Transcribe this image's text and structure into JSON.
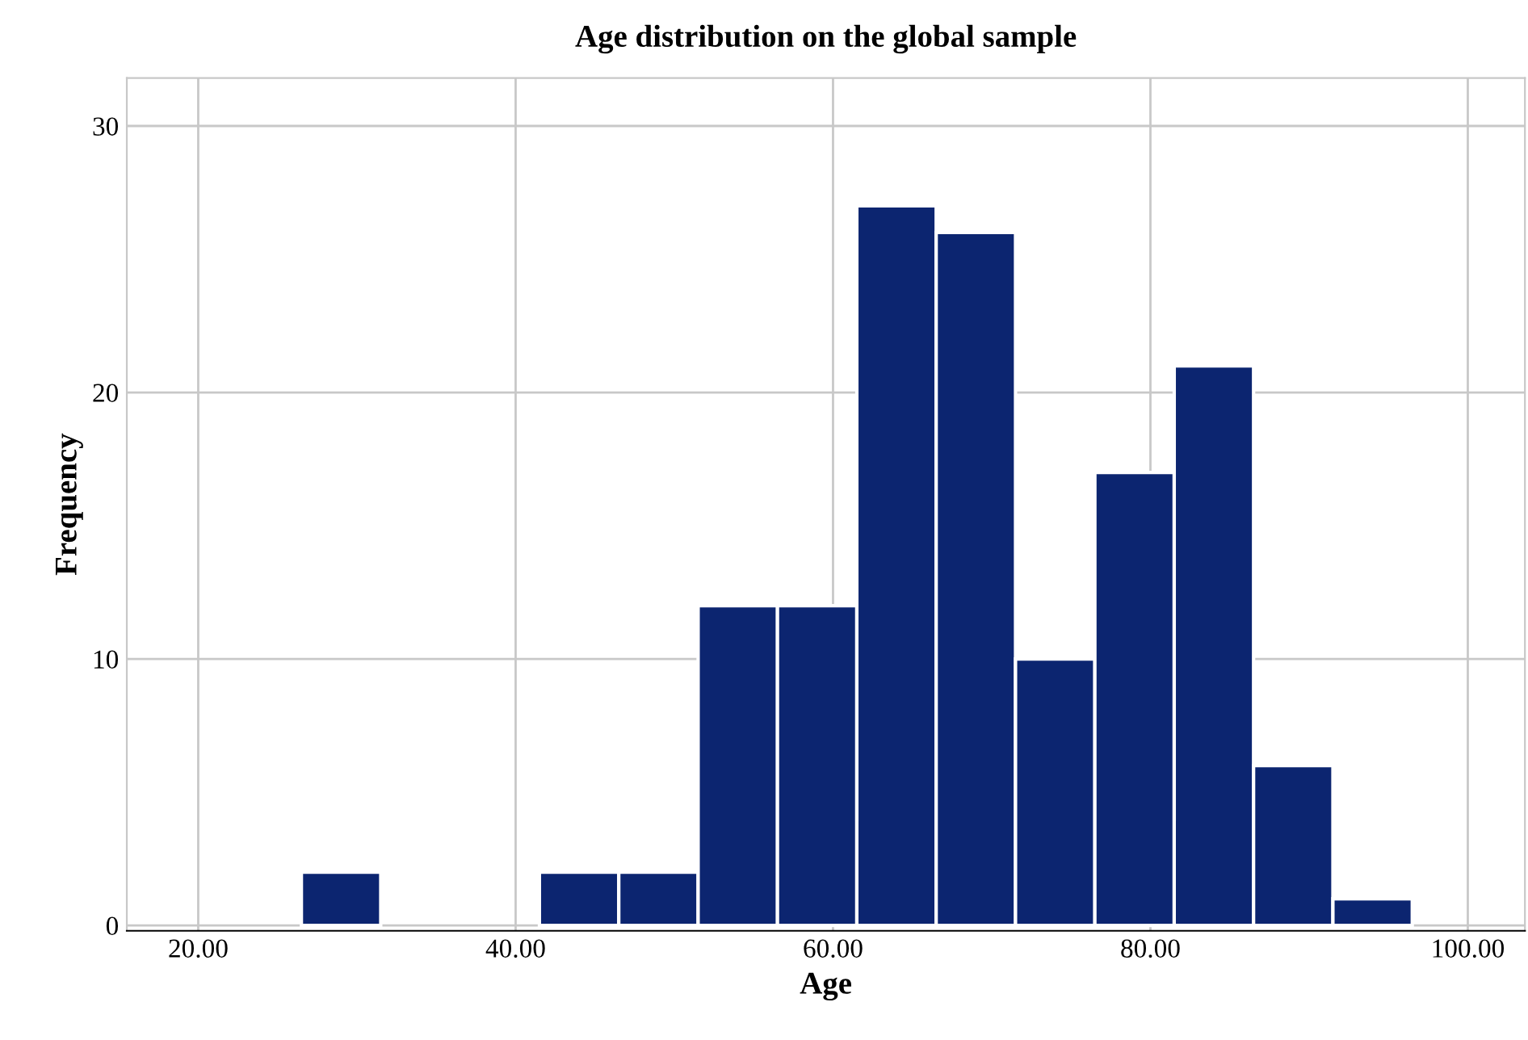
{
  "chart_data": {
    "type": "histogram",
    "title": "Age distribution on the global sample",
    "xlabel": "Age",
    "ylabel": "Frequency",
    "bins": [
      26.5,
      31.5,
      36.5,
      41.5,
      46.5,
      51.5,
      56.5,
      61.5,
      66.5,
      71.5,
      76.5,
      81.5,
      86.5,
      91.5,
      96.5
    ],
    "values": [
      2,
      0,
      0,
      2,
      2,
      12,
      12,
      27,
      26,
      10,
      17,
      21,
      6,
      1
    ],
    "color": "#0c2570",
    "xlim": [
      15.5,
      103.6
    ],
    "xticks": [
      {
        "value": 20,
        "label": "20.00"
      },
      {
        "value": 40,
        "label": "40.00"
      },
      {
        "value": 60,
        "label": "60.00"
      },
      {
        "value": 80,
        "label": "80.00"
      },
      {
        "value": 100,
        "label": "100.00"
      }
    ],
    "ylim": [
      -0.2,
      31.8
    ],
    "yticks": [
      0,
      10,
      20,
      30
    ],
    "grid": true
  }
}
